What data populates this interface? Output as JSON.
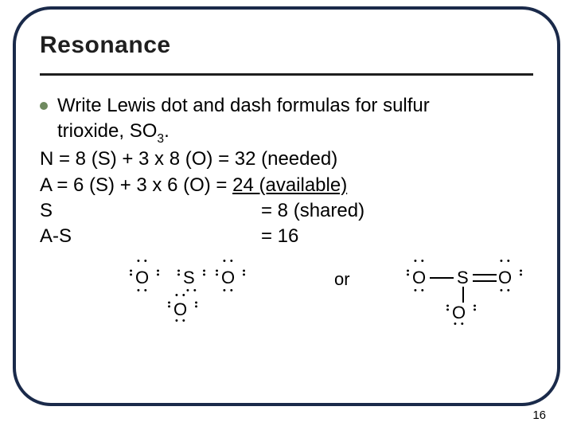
{
  "title": "Resonance",
  "bullet": {
    "text_a": "Write Lewis dot and dash formulas for sulfur",
    "text_b": "trioxide, SO",
    "sub3": "3",
    "text_c": "."
  },
  "lines": {
    "needed": "N = 8 (S) + 3 x 8 (O) = 32 (needed)",
    "avail_left": "A = 6 (S) + 3 x 6 (O) = ",
    "avail_right": "24 (available)",
    "shared_l": "S",
    "shared_r": "=  8 (shared)",
    "as_l": "A-S",
    "as_r": "= 16"
  },
  "structure": {
    "O": "O",
    "S": "S",
    "or": "or"
  },
  "dots": {
    "h": "• •",
    "v": "••"
  },
  "page_number": "16",
  "colors": {
    "border": "#1a2a4a",
    "bullet": "#6f8a5f",
    "text": "#000000",
    "bg": "#ffffff"
  }
}
